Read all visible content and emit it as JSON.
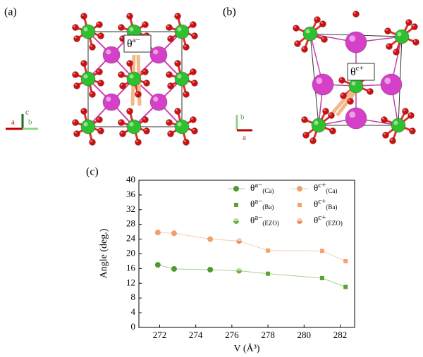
{
  "panel_a": {
    "label": "(a)",
    "angle_symbol": "θ",
    "angle_sup": "a−",
    "axis_c": "c",
    "axis_a": "a",
    "axis_b": "b"
  },
  "panel_b": {
    "label": "(b)",
    "angle_symbol": "θ",
    "angle_sup": "c+",
    "axis_b": "b",
    "axis_a": "a"
  },
  "chart_data": {
    "type": "scatter",
    "panel_label": "(c)",
    "x_label": "V (Å³)",
    "y_label": "Angle (deg.)",
    "xlim": [
      270.85,
      282.8
    ],
    "xticks": [
      272,
      274,
      276,
      278,
      280,
      282
    ],
    "ylim": [
      0,
      40
    ],
    "yticks": [
      0,
      4,
      8,
      12,
      16,
      20,
      24,
      28,
      32,
      36,
      40
    ],
    "legend": "upper right",
    "series": [
      {
        "name": "θ",
        "superscript": "a−",
        "subscript": "(Ca)",
        "color": "#4f9a2c",
        "line_color": "#a9d08e",
        "marker": "circle",
        "x": [
          271.9,
          272.8,
          274.8
        ],
        "values": [
          17.0,
          15.9,
          15.7
        ]
      },
      {
        "name": "θ",
        "superscript": "c+",
        "subscript": "(Ca)",
        "color": "#f0a070",
        "line_color": "#f6cdb0",
        "marker": "circle",
        "x": [
          271.9,
          272.8,
          274.8
        ],
        "values": [
          25.8,
          25.6,
          24.0
        ]
      },
      {
        "name": "θ",
        "superscript": "a−",
        "subscript": "(EZO)",
        "color": "#6cb33f",
        "line_color": "#a9d08e",
        "marker": "half",
        "x": [
          276.4
        ],
        "values": [
          15.4
        ]
      },
      {
        "name": "θ",
        "superscript": "c+",
        "subscript": "(EZO)",
        "color": "#ec8d5e",
        "line_color": "#f6cdb0",
        "marker": "half",
        "x": [
          276.4
        ],
        "values": [
          23.5
        ]
      },
      {
        "name": "θ",
        "superscript": "a−",
        "subscript": "(Ba)",
        "color": "#5aa334",
        "line_color": "#a9d08e",
        "marker": "square",
        "x": [
          278.0,
          281.0,
          282.3
        ],
        "values": [
          14.6,
          13.4,
          11.0
        ]
      },
      {
        "name": "θ",
        "superscript": "c+",
        "subscript": "(Ba)",
        "color": "#f4a26e",
        "line_color": "#f6cdb0",
        "marker": "square",
        "x": [
          278.0,
          281.0,
          282.3
        ],
        "values": [
          20.9,
          20.8,
          18.0
        ]
      }
    ]
  }
}
